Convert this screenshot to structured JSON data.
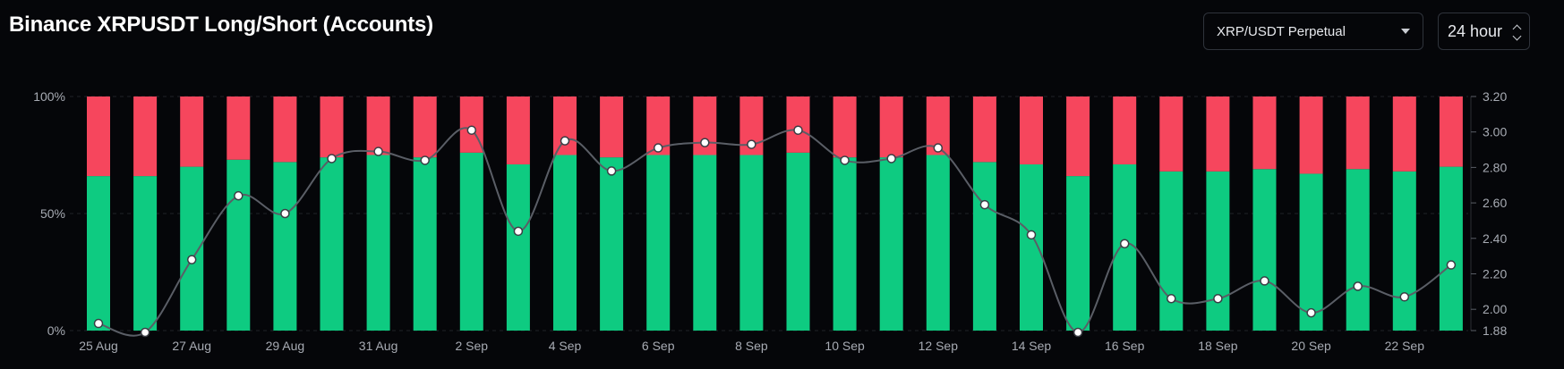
{
  "header": {
    "title": "Binance XRPUSDT Long/Short (Accounts)",
    "symbol_select": "XRP/USDT Perpetual",
    "interval_select": "24 hour"
  },
  "chart_data": {
    "type": "bar",
    "title": "Binance XRPUSDT Long/Short (Accounts)",
    "stacked": true,
    "categories": [
      "25 Aug",
      "26 Aug",
      "27 Aug",
      "28 Aug",
      "29 Aug",
      "30 Aug",
      "31 Aug",
      "1 Sep",
      "2 Sep",
      "3 Sep",
      "4 Sep",
      "5 Sep",
      "6 Sep",
      "7 Sep",
      "8 Sep",
      "9 Sep",
      "10 Sep",
      "11 Sep",
      "12 Sep",
      "13 Sep",
      "14 Sep",
      "15 Sep",
      "16 Sep",
      "17 Sep",
      "18 Sep",
      "19 Sep",
      "20 Sep",
      "21 Sep",
      "22 Sep",
      "23 Sep"
    ],
    "x_tick_labels": [
      "25 Aug",
      "27 Aug",
      "29 Aug",
      "31 Aug",
      "2 Sep",
      "4 Sep",
      "6 Sep",
      "8 Sep",
      "10 Sep",
      "12 Sep",
      "14 Sep",
      "16 Sep",
      "18 Sep",
      "20 Sep",
      "22 Sep"
    ],
    "series": [
      {
        "axis": "left",
        "color": "#0ecb81",
        "values": [
          0.66,
          0.66,
          0.7,
          0.73,
          0.72,
          0.74,
          0.75,
          0.74,
          0.76,
          0.71,
          0.75,
          0.74,
          0.75,
          0.75,
          0.75,
          0.76,
          0.74,
          0.74,
          0.75,
          0.72,
          0.71,
          0.66,
          0.71,
          0.68,
          0.68,
          0.69,
          0.67,
          0.69,
          0.68,
          0.7
        ]
      },
      {
        "axis": "left",
        "color": "#f6465d",
        "values": [
          0.34,
          0.34,
          0.3,
          0.27,
          0.28,
          0.26,
          0.25,
          0.26,
          0.24,
          0.29,
          0.25,
          0.26,
          0.25,
          0.25,
          0.25,
          0.24,
          0.26,
          0.26,
          0.25,
          0.28,
          0.29,
          0.34,
          0.29,
          0.32,
          0.32,
          0.31,
          0.33,
          0.31,
          0.32,
          0.3
        ]
      },
      {
        "type": "line",
        "axis": "right",
        "color": "#5a5e66",
        "values": [
          1.92,
          1.87,
          2.28,
          2.64,
          2.54,
          2.85,
          2.89,
          2.84,
          3.01,
          2.44,
          2.95,
          2.78,
          2.91,
          2.94,
          2.93,
          3.01,
          2.84,
          2.85,
          2.91,
          2.59,
          2.42,
          1.87,
          2.37,
          2.06,
          2.06,
          2.16,
          1.98,
          2.13,
          2.07,
          2.25
        ]
      }
    ],
    "y_left": {
      "ylim": [
        0,
        1
      ],
      "tick_labels": [
        "100%",
        "50%",
        "0%"
      ],
      "ticks": [
        1,
        0.5,
        0
      ]
    },
    "y_right": {
      "ylim": [
        1.88,
        3.2
      ],
      "tick_labels": [
        "3.20",
        "3.00",
        "2.80",
        "2.60",
        "2.40",
        "2.20",
        "2.00",
        "1.88"
      ],
      "ticks": [
        3.2,
        3.0,
        2.8,
        2.6,
        2.4,
        2.2,
        2.0,
        1.88
      ]
    },
    "grid": true
  }
}
